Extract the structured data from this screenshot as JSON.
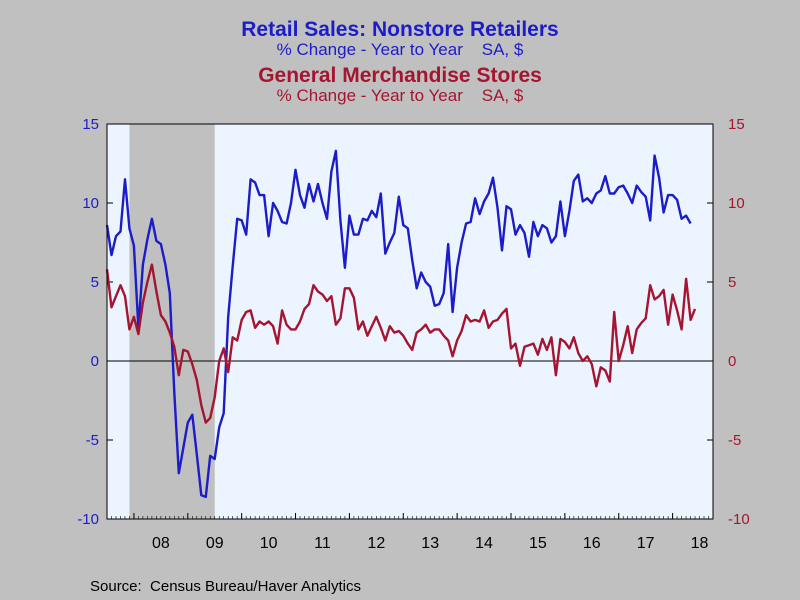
{
  "chart_data": {
    "type": "line",
    "title": "Retail Sales: Nonstore Retailers",
    "subtitle": "% Change - Year to Year    SA, $",
    "title2": "General Merchandise Stores",
    "subtitle2": "% Change - Year to Year    SA, $",
    "source": "Source:  Census Bureau/Haver Analytics",
    "xlabel": "",
    "ylabel": "",
    "x_start": 2007.5,
    "x_end": 2018.75,
    "ylim": [
      -10,
      15
    ],
    "yticks": [
      "15",
      "10",
      "5",
      "0",
      "-5",
      "-10"
    ],
    "xtick_labels": [
      "08",
      "09",
      "10",
      "11",
      "12",
      "13",
      "14",
      "15",
      "16",
      "17",
      "18"
    ],
    "recession": [
      2007.917,
      2009.5
    ],
    "colors": {
      "nonstore": "#1c1cc8",
      "general": "#a51530",
      "background": "#c0c0c0",
      "plot": "#ebf4ff",
      "recession": "#c0c0c0"
    },
    "series": [
      {
        "name": "Retail Sales: Nonstore Retailers",
        "start": 2007.5,
        "values": [
          8.6,
          6.7,
          7.9,
          8.2,
          11.5,
          8.4,
          7.3,
          2.1,
          6.1,
          7.7,
          9.0,
          7.6,
          7.4,
          6.1,
          4.3,
          -2.0,
          -7.1,
          -5.5,
          -3.9,
          -3.4,
          -5.9,
          -8.5,
          -8.6,
          -6.0,
          -6.2,
          -4.2,
          -3.3,
          2.8,
          6.0,
          9.0,
          8.9,
          8.0,
          11.5,
          11.3,
          10.5,
          10.5,
          7.9,
          10.0,
          9.5,
          8.8,
          8.7,
          10.0,
          12.1,
          10.5,
          9.7,
          11.2,
          10.1,
          11.2,
          10.0,
          9.0,
          12.0,
          13.3,
          8.9,
          5.9,
          9.2,
          8.0,
          8.0,
          9.0,
          8.9,
          9.5,
          9.1,
          10.6,
          6.8,
          7.5,
          8.1,
          10.4,
          8.6,
          8.4,
          6.4,
          4.6,
          5.6,
          5.0,
          4.7,
          3.5,
          3.6,
          4.3,
          7.4,
          3.1,
          5.9,
          7.5,
          8.7,
          8.8,
          10.3,
          9.3,
          10.1,
          10.6,
          11.6,
          9.7,
          7.0,
          9.8,
          9.6,
          8.0,
          8.6,
          8.1,
          6.6,
          8.8,
          7.9,
          8.6,
          8.4,
          7.5,
          7.9,
          10.1,
          7.9,
          9.5,
          11.4,
          11.8,
          10.1,
          10.3,
          10.0,
          10.6,
          10.8,
          11.7,
          10.6,
          10.6,
          11.0,
          11.1,
          10.6,
          10.0,
          11.1,
          10.7,
          10.4,
          8.9,
          13.0,
          11.6,
          9.4,
          10.5,
          10.5,
          10.2,
          9.0,
          9.2,
          8.7
        ]
      },
      {
        "name": "General Merchandise Stores",
        "start": 2007.5,
        "values": [
          5.8,
          3.4,
          4.1,
          4.8,
          4.1,
          2.0,
          2.8,
          1.7,
          3.7,
          5.0,
          6.1,
          4.4,
          2.9,
          2.5,
          1.8,
          0.9,
          -0.9,
          0.7,
          0.6,
          -0.2,
          -1.2,
          -2.8,
          -3.9,
          -3.6,
          -2.3,
          0.0,
          0.8,
          -0.7,
          1.5,
          1.3,
          2.6,
          3.1,
          3.2,
          2.1,
          2.5,
          2.3,
          2.5,
          2.2,
          1.1,
          3.2,
          2.3,
          2.0,
          2.0,
          2.5,
          3.3,
          3.6,
          4.8,
          4.4,
          4.2,
          3.8,
          4.1,
          2.3,
          2.7,
          4.6,
          4.6,
          4.0,
          2.0,
          2.5,
          1.6,
          2.2,
          2.8,
          2.1,
          1.3,
          2.2,
          1.8,
          1.9,
          1.6,
          1.1,
          0.7,
          1.8,
          2.0,
          2.3,
          1.8,
          2.0,
          2.0,
          1.6,
          1.3,
          0.3,
          1.3,
          1.9,
          2.9,
          2.5,
          2.6,
          2.5,
          3.2,
          2.1,
          2.5,
          2.6,
          3.0,
          3.3,
          0.8,
          1.1,
          -0.3,
          0.9,
          1.0,
          1.1,
          0.4,
          1.4,
          0.7,
          1.5,
          -0.9,
          1.4,
          1.2,
          0.8,
          1.5,
          0.5,
          0.0,
          0.3,
          -0.2,
          -1.6,
          -0.4,
          -0.6,
          -1.3,
          3.1,
          0.0,
          1.0,
          2.2,
          0.5,
          2.0,
          2.4,
          2.7,
          4.8,
          3.9,
          4.1,
          4.5,
          2.3,
          4.2,
          3.2,
          2.0,
          5.2,
          2.6,
          3.3
        ]
      }
    ]
  }
}
